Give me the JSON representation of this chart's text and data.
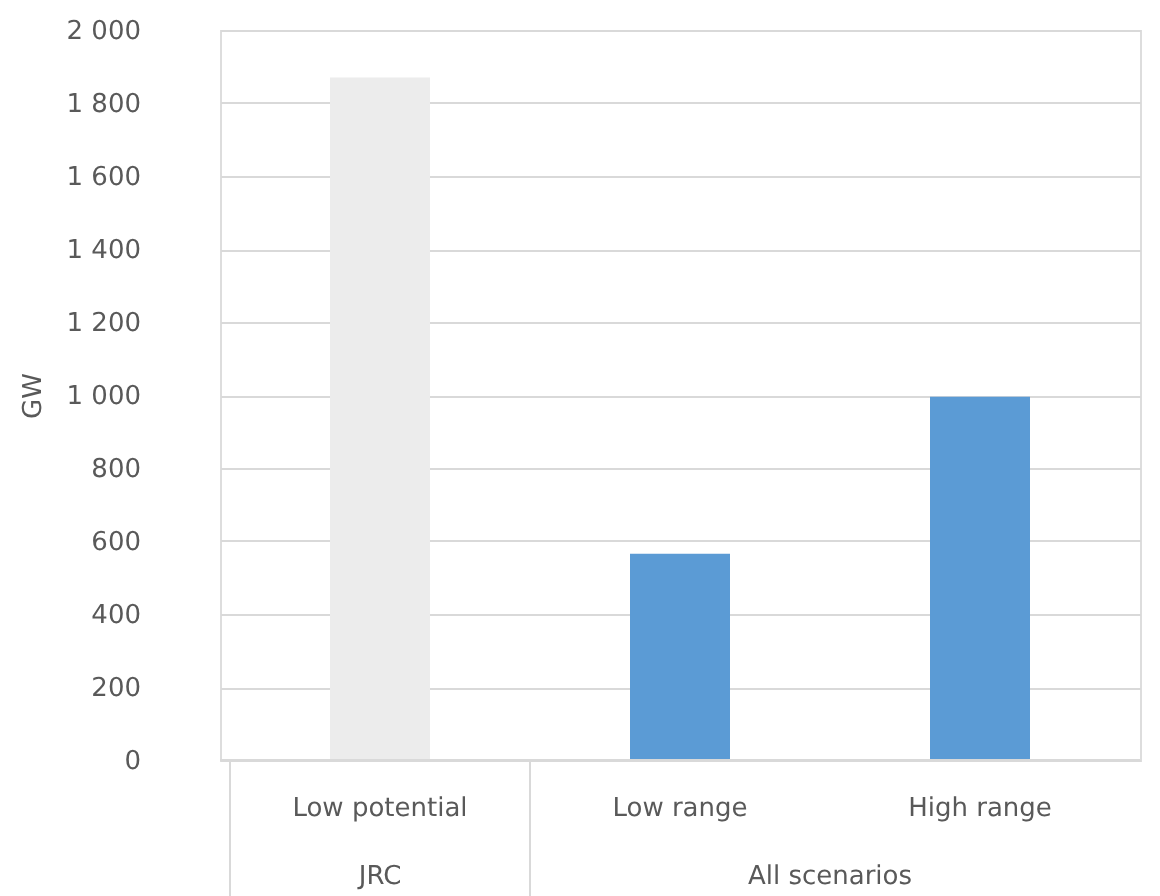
{
  "chart_data": {
    "type": "bar",
    "ylabel": "GW",
    "categories": [
      "Low potential",
      "Low range",
      "High range"
    ],
    "values": [
      1870,
      565,
      995
    ],
    "colors": [
      "#ececec",
      "#5b9bd5",
      "#5b9bd5"
    ],
    "ylim": [
      0,
      2000
    ],
    "yticks": [
      0,
      200,
      400,
      600,
      800,
      {
        "value": 1000,
        "label": "1 000"
      },
      {
        "value": 1200,
        "label": "1 200"
      },
      {
        "value": 1400,
        "label": "1 400"
      },
      {
        "value": 1600,
        "label": "1 600"
      },
      {
        "value": 1800,
        "label": "1 800"
      },
      {
        "value": 2000,
        "label": "2 000"
      }
    ],
    "grid": "y",
    "annotations": [
      "JRC",
      "All scenarios"
    ]
  }
}
